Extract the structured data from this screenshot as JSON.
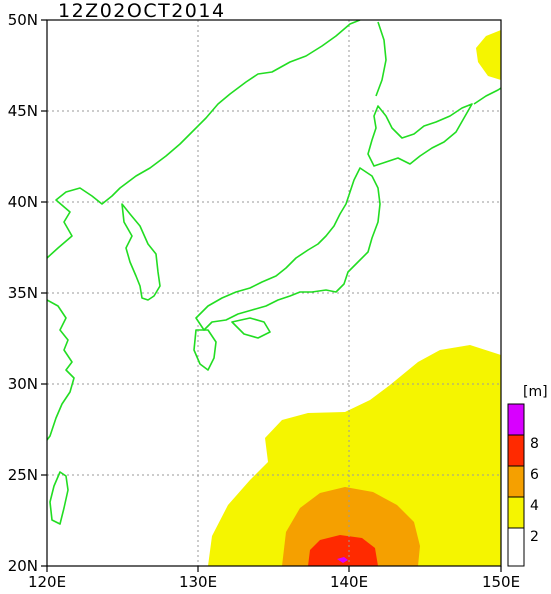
{
  "map": {
    "title": "12Z02OCT2014",
    "unit": "[m]",
    "lon_range": [
      120,
      150
    ],
    "lat_range": [
      20,
      50
    ],
    "x_tick_labels": [
      "120E",
      "130E",
      "140E",
      "150E"
    ],
    "y_tick_labels": [
      "20N",
      "25N",
      "30N",
      "35N",
      "40N",
      "45N",
      "50N"
    ],
    "colorbar_labels": [
      "2",
      "4",
      "6",
      "8"
    ],
    "colors": {
      "coastline": "#22dd22",
      "level_below_2": "#ffffff",
      "level_2_4": "#f5f500",
      "level_4_6": "#f5a000",
      "level_6_8": "#ff2a00",
      "level_above_8": "#d800ff",
      "grid": "#9a9a9a"
    }
  }
}
